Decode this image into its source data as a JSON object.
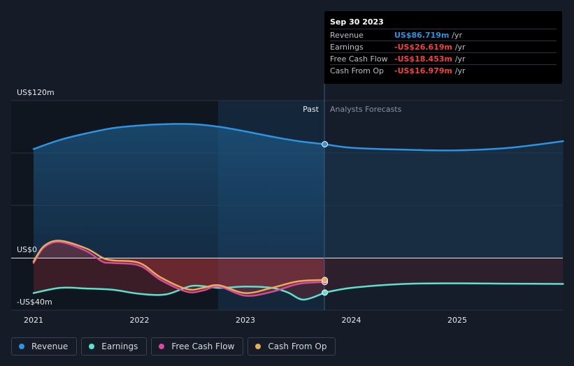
{
  "tooltip": {
    "date": "Sep 30 2023",
    "rows": [
      {
        "label": "Revenue",
        "value": "US$86.719m",
        "unit": "/yr",
        "color": "#2e93e0"
      },
      {
        "label": "Earnings",
        "value": "-US$26.619m",
        "unit": "/yr",
        "color": "#f0443e"
      },
      {
        "label": "Free Cash Flow",
        "value": "-US$18.453m",
        "unit": "/yr",
        "color": "#f0443e"
      },
      {
        "label": "Cash From Op",
        "value": "-US$16.979m",
        "unit": "/yr",
        "color": "#f0443e"
      }
    ]
  },
  "legend": [
    {
      "label": "Revenue",
      "color": "#2e93e0"
    },
    {
      "label": "Earnings",
      "color": "#5ee0cf"
    },
    {
      "label": "Free Cash Flow",
      "color": "#d54a9a"
    },
    {
      "label": "Cash From Op",
      "color": "#e8aa5e"
    }
  ],
  "chart_data": {
    "type": "line",
    "ylim": [
      -40,
      120
    ],
    "y_tick_labels": [
      "US$120m",
      "US$0",
      "-US$40m"
    ],
    "x_tick_labels": [
      "2021",
      "2022",
      "2023",
      "2024",
      "2025"
    ],
    "past_label": "Past",
    "forecast_label": "Analysts Forecasts",
    "past_end_date": 2023.75,
    "series": [
      {
        "name": "Revenue",
        "color": "#2e93e0",
        "x": [
          2021.0,
          2021.25,
          2021.5,
          2021.75,
          2022.0,
          2022.25,
          2022.5,
          2022.75,
          2023.0,
          2023.25,
          2023.5,
          2023.75
        ],
        "y": [
          83,
          90,
          95,
          99,
          101,
          102,
          102,
          100,
          96.5,
          92.5,
          89,
          86.7
        ]
      },
      {
        "name": "Revenue forecast",
        "color": "#2e93e0",
        "x": [
          2023.75,
          2024.0,
          2024.5,
          2025.0,
          2025.5,
          2026.0
        ],
        "y": [
          86.7,
          84,
          82.5,
          82,
          84,
          89
        ]
      },
      {
        "name": "Earnings",
        "color": "#5ee0cf",
        "x": [
          2021.0,
          2021.25,
          2021.5,
          2021.75,
          2022.0,
          2022.25,
          2022.5,
          2022.75,
          2023.0,
          2023.25,
          2023.4,
          2023.55,
          2023.75
        ],
        "y": [
          -27,
          -23,
          -23.5,
          -24.5,
          -27.5,
          -28,
          -21.5,
          -23,
          -22,
          -23,
          -26.5,
          -32,
          -26.6
        ]
      },
      {
        "name": "Earnings forecast",
        "color": "#5ee0cf",
        "x": [
          2023.75,
          2024.0,
          2024.5,
          2025.0,
          2025.5,
          2026.0
        ],
        "y": [
          -26.6,
          -23,
          -20,
          -19.5,
          -19.8,
          -20
        ]
      },
      {
        "name": "Free Cash Flow",
        "color": "#d54a9a",
        "x": [
          2021.0,
          2021.1,
          2021.25,
          2021.5,
          2021.65,
          2021.75,
          2022.0,
          2022.2,
          2022.45,
          2022.6,
          2022.75,
          2023.0,
          2023.25,
          2023.5,
          2023.75
        ],
        "y": [
          -4,
          8,
          12,
          5,
          -3,
          -4,
          -6,
          -17,
          -26,
          -25,
          -22,
          -29,
          -26,
          -20,
          -18.5
        ]
      },
      {
        "name": "Cash From Op",
        "color": "#e8aa5e",
        "x": [
          2021.0,
          2021.1,
          2021.25,
          2021.5,
          2021.65,
          2021.75,
          2022.0,
          2022.2,
          2022.45,
          2022.6,
          2022.75,
          2023.0,
          2023.25,
          2023.5,
          2023.75
        ],
        "y": [
          -3,
          9,
          13,
          7,
          0,
          -2,
          -4,
          -15,
          -24,
          -23,
          -21,
          -27,
          -23,
          -18,
          -17
        ]
      }
    ]
  }
}
